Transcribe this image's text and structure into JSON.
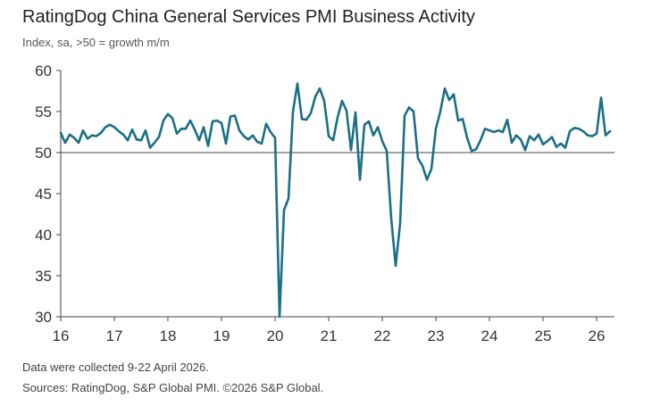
{
  "chart_data": {
    "type": "line",
    "title": "RatingDog China General Services PMI Business Activity",
    "subtitle": "Index, sa, >50 = growth m/m",
    "xlabel": "",
    "ylabel": "",
    "ylim": [
      30,
      60
    ],
    "yticks": [
      "30",
      "35",
      "40",
      "45",
      "50",
      "55",
      "60"
    ],
    "xticks": [
      "16",
      "17",
      "18",
      "19",
      "20",
      "21",
      "22",
      "23",
      "24",
      "25",
      "26"
    ],
    "x_start": "2016-01",
    "x_end": "2026-04",
    "grid": false,
    "reference_line": 50,
    "line_color": "#1b6f86",
    "series": [
      {
        "name": "",
        "values": [
          52.4,
          51.2,
          52.2,
          51.8,
          51.2,
          52.7,
          51.7,
          52.1,
          52.0,
          52.4,
          53.1,
          53.4,
          53.1,
          52.6,
          52.2,
          51.5,
          52.8,
          51.6,
          51.5,
          52.7,
          50.6,
          51.2,
          51.9,
          53.9,
          54.7,
          54.2,
          52.3,
          52.9,
          52.9,
          53.9,
          52.8,
          51.5,
          53.1,
          50.8,
          53.8,
          53.9,
          53.6,
          51.1,
          54.4,
          54.5,
          52.7,
          52.0,
          51.6,
          52.1,
          51.3,
          51.1,
          53.5,
          52.5,
          51.8,
          26.5,
          43.0,
          44.4,
          55.0,
          58.4,
          54.1,
          54.0,
          54.8,
          56.8,
          57.8,
          56.3,
          52.0,
          51.5,
          54.3,
          56.3,
          55.1,
          50.3,
          54.9,
          46.7,
          53.4,
          53.8,
          52.1,
          53.1,
          51.4,
          50.2,
          42.0,
          36.2,
          41.4,
          54.5,
          55.5,
          55.0,
          49.3,
          48.4,
          46.7,
          48.0,
          52.9,
          55.0,
          57.8,
          56.4,
          57.1,
          53.9,
          54.1,
          51.8,
          50.2,
          50.4,
          51.5,
          52.9,
          52.7,
          52.5,
          52.7,
          52.5,
          54.0,
          51.2,
          52.1,
          51.6,
          50.3,
          52.0,
          51.5,
          52.2,
          51.0,
          51.4,
          51.9,
          50.7,
          51.1,
          50.6,
          52.6,
          53.0,
          52.9,
          52.6,
          52.1,
          52.0,
          52.3,
          56.7,
          52.1,
          52.6
        ]
      }
    ]
  },
  "footer": {
    "note": "Data were collected 9-22 April 2026.",
    "sources": "Sources: RatingDog, S&P Global PMI. ©2026 S&P Global."
  }
}
